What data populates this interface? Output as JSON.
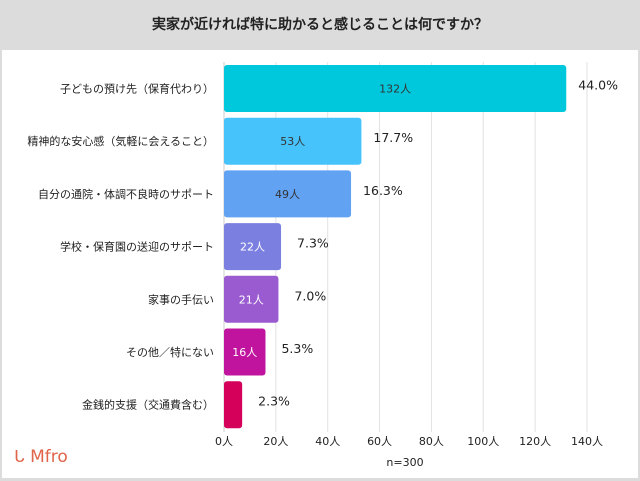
{
  "chart_data": {
    "type": "bar",
    "orientation": "horizontal",
    "title": "実家が近ければ特に助かると感じることは何ですか？",
    "categories": [
      "子どもの預け先（保育代わり）",
      "精神的な安心感（気軽に会えること）",
      "自分の通院・体調不良時のサポート",
      "学校・保育園の送迎のサポート",
      "家事の手伝い",
      "その他／特にない",
      "金銭的支援（交通費含む）"
    ],
    "values": [
      132,
      53,
      49,
      22,
      21,
      16,
      7
    ],
    "count_labels": [
      "132人",
      "53人",
      "49人",
      "22人",
      "21人",
      "16人",
      ""
    ],
    "percent_labels": [
      "44.0%",
      "17.7%",
      "16.3%",
      "7.3%",
      "7.0%",
      "5.3%",
      "2.3%"
    ],
    "colors": [
      "#00c8dc",
      "#47c3fb",
      "#62a2f2",
      "#7b80e0",
      "#9a5bd0",
      "#c0149f",
      "#d4005a"
    ],
    "count_label_colors": [
      "#333333",
      "#333333",
      "#333333",
      "#ffffff",
      "#ffffff",
      "#ffffff",
      "#ffffff"
    ],
    "xlim": [
      0,
      140
    ],
    "xticks": [
      "0人",
      "20人",
      "40人",
      "60人",
      "80人",
      "100人",
      "120人",
      "140人"
    ],
    "xtick_values": [
      0,
      20,
      40,
      60,
      80,
      100,
      120,
      140
    ],
    "grid": true,
    "note": "n=300"
  },
  "logo": "Mfro"
}
